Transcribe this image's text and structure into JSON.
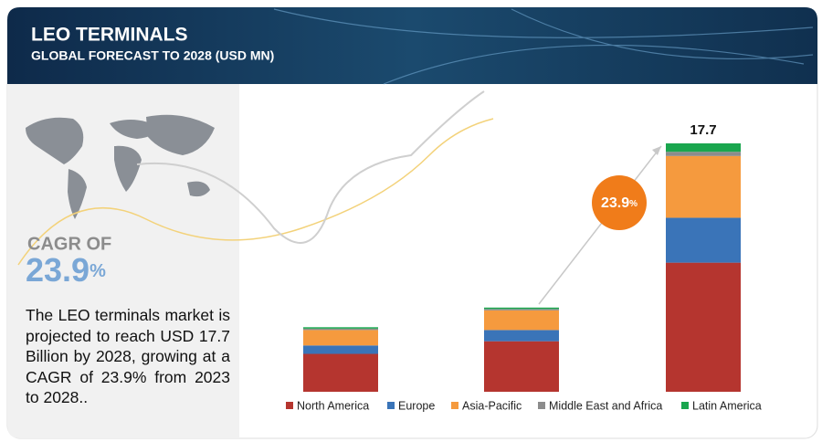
{
  "header": {
    "title": "LEO TERMINALS",
    "subtitle": "GLOBAL FORECAST TO 2028 (USD MN)"
  },
  "sidebar": {
    "cagr_label": "CAGR OF",
    "cagr_value": "23.9",
    "cagr_unit": "%",
    "text": "The LEO terminals market is projected to reach USD 17.7 Billion by 2028, growing at a CAGR of 23.9% from 2023 to 2028.."
  },
  "chart_data": {
    "type": "bar",
    "stacked": true,
    "categories": [
      null,
      null,
      null
    ],
    "series": [
      {
        "name": "North America",
        "color": "#b5352f",
        "values": [
          2.7,
          3.6,
          9.2
        ]
      },
      {
        "name": "Europe",
        "color": "#3a74b8",
        "values": [
          0.6,
          0.8,
          3.2
        ]
      },
      {
        "name": "Asia-Pacific",
        "color": "#f59a3e",
        "values": [
          1.1,
          1.4,
          4.4
        ]
      },
      {
        "name": "Middle East and Africa",
        "color": "#8c8c8c",
        "values": [
          0.1,
          0.1,
          0.3
        ]
      },
      {
        "name": "Latin America",
        "color": "#1aa64e",
        "values": [
          0.1,
          0.1,
          0.6
        ]
      }
    ],
    "total_label": "17.7",
    "cagr_badge": {
      "value": "23.9",
      "unit": "%"
    }
  }
}
